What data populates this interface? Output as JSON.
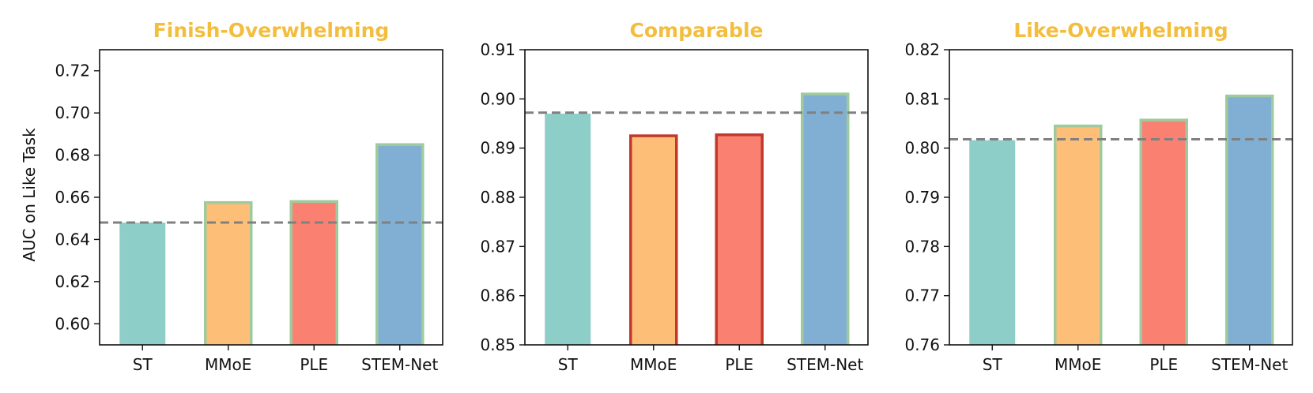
{
  "figure": {
    "ylabel": "AUC on Like Task",
    "title_color": "#F3BD3E",
    "reference_line_color": "#808080",
    "bar_colors": [
      "#8ECEC8",
      "#FDBE78",
      "#FA8072",
      "#80AFD3"
    ]
  },
  "chart_data": [
    {
      "type": "bar",
      "title": "Finish-Overwhelming",
      "categories": [
        "ST",
        "MMoE",
        "PLE",
        "STEM-Net"
      ],
      "values": [
        0.648,
        0.6575,
        0.658,
        0.685
      ],
      "edge_colors": [
        "none",
        "#9FCB9C",
        "#9FCB9C",
        "#9FCB9C"
      ],
      "reference_line": 0.648,
      "ylim": [
        0.59,
        0.73
      ],
      "yticks": [
        0.6,
        0.62,
        0.64,
        0.66,
        0.68,
        0.7,
        0.72
      ],
      "ytick_labels": [
        "0.60",
        "0.62",
        "0.64",
        "0.66",
        "0.68",
        "0.70",
        "0.72"
      ],
      "xlabel": "",
      "ylabel": "AUC on Like Task"
    },
    {
      "type": "bar",
      "title": "Comparable",
      "categories": [
        "ST",
        "MMoE",
        "PLE",
        "STEM-Net"
      ],
      "values": [
        0.897,
        0.8925,
        0.8927,
        0.901
      ],
      "edge_colors": [
        "none",
        "#C0392B",
        "#C0392B",
        "#9FCB9C"
      ],
      "reference_line": 0.8972,
      "ylim": [
        0.85,
        0.91
      ],
      "yticks": [
        0.85,
        0.86,
        0.87,
        0.88,
        0.89,
        0.9,
        0.91
      ],
      "ytick_labels": [
        "0.85",
        "0.86",
        "0.87",
        "0.88",
        "0.89",
        "0.90",
        "0.91"
      ],
      "xlabel": "",
      "ylabel": ""
    },
    {
      "type": "bar",
      "title": "Like-Overwhelming",
      "categories": [
        "ST",
        "MMoE",
        "PLE",
        "STEM-Net"
      ],
      "values": [
        0.8016,
        0.8045,
        0.8057,
        0.8106
      ],
      "edge_colors": [
        "none",
        "#9FCB9C",
        "#9FCB9C",
        "#9FCB9C"
      ],
      "reference_line": 0.8018,
      "ylim": [
        0.76,
        0.82
      ],
      "yticks": [
        0.76,
        0.77,
        0.78,
        0.79,
        0.8,
        0.81,
        0.82
      ],
      "ytick_labels": [
        "0.76",
        "0.77",
        "0.78",
        "0.79",
        "0.80",
        "0.81",
        "0.82"
      ],
      "xlabel": "",
      "ylabel": ""
    }
  ]
}
